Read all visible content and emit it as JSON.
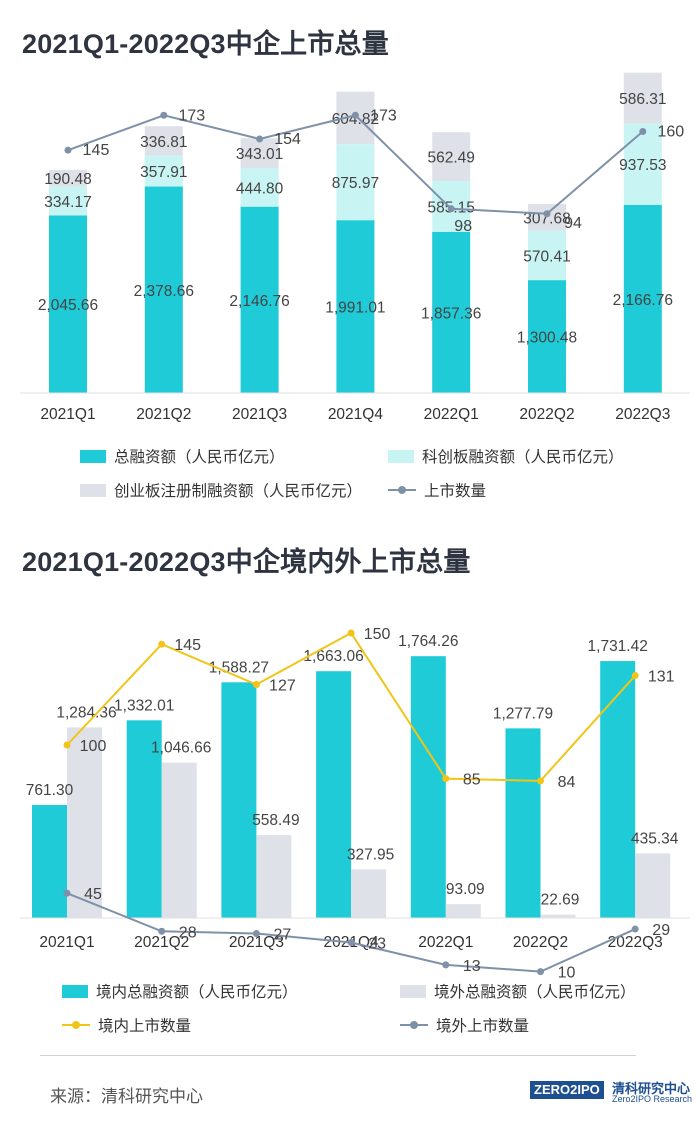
{
  "chart_data": [
    {
      "type": "bar",
      "title": "2021Q1-2022Q3中企上市总量",
      "categories": [
        "2021Q1",
        "2021Q2",
        "2021Q3",
        "2021Q4",
        "2022Q1",
        "2022Q2",
        "2022Q3"
      ],
      "series": [
        {
          "name": "总融资额（人民币亿元）",
          "kind": "bar",
          "color": "#1ecbd6",
          "values": [
            2045.66,
            2378.66,
            2146.76,
            1991.01,
            1857.36,
            1300.48,
            2166.76
          ],
          "labels": [
            "2,045.66",
            "2,378.66",
            "2,146.76",
            "1,991.01",
            "1,857.36",
            "1,300.48",
            "2,166.76"
          ]
        },
        {
          "name": "科创板融资额（人民币亿元）",
          "kind": "bar",
          "color": "#c9f4f4",
          "values": [
            334.17,
            357.91,
            444.8,
            875.97,
            585.15,
            570.41,
            937.53
          ],
          "labels": [
            "334.17",
            "357.91",
            "444.80",
            "875.97",
            "585.15",
            "570.41",
            "937.53"
          ]
        },
        {
          "name": "创业板注册制融资额（人民币亿元）",
          "kind": "bar",
          "color": "#dfe1e8",
          "values": [
            190.48,
            336.81,
            343.01,
            604.82,
            562.49,
            307.68,
            586.31
          ],
          "labels": [
            "190.48",
            "336.81",
            "343.01",
            "604.82",
            "562.49",
            "307.68",
            "586.31"
          ]
        },
        {
          "name": "上市数量",
          "kind": "line",
          "color": "#7f91a8",
          "values": [
            145,
            173,
            154,
            173,
            98,
            94,
            160
          ],
          "labels": [
            "145",
            "173",
            "154",
            "173",
            "98",
            "94",
            "160"
          ]
        }
      ]
    },
    {
      "type": "bar",
      "title": "2021Q1-2022Q3中企境内外上市总量",
      "categories": [
        "2021Q1",
        "2021Q2",
        "2021Q3",
        "2021Q4",
        "2022Q1",
        "2022Q2",
        "2022Q3"
      ],
      "series": [
        {
          "name": "境内总融资额（人民币亿元）",
          "kind": "bar",
          "color": "#1ecbd6",
          "values": [
            761.3,
            1332.01,
            1588.27,
            1663.06,
            1764.26,
            1277.79,
            1731.42
          ],
          "labels": [
            "761.30",
            "1,332.01",
            "1,588.27",
            "1,663.06",
            "1,764.26",
            "1,277.79",
            "1,731.42"
          ]
        },
        {
          "name": "境外总融资额（人民币亿元）",
          "kind": "bar",
          "color": "#dfe1e8",
          "values": [
            1284.36,
            1046.66,
            558.49,
            327.95,
            93.09,
            22.69,
            435.34
          ],
          "labels": [
            "1,284.36",
            "1,046.66",
            "558.49",
            "327.95",
            "93.09",
            "22.69",
            "435.34"
          ]
        },
        {
          "name": "境内上市数量",
          "kind": "line",
          "color": "#f2c418",
          "values": [
            100,
            145,
            127,
            150,
            85,
            84,
            131
          ],
          "labels": [
            "100",
            "145",
            "127",
            "150",
            "85",
            "84",
            "131"
          ]
        },
        {
          "name": "境外上市数量",
          "kind": "line",
          "color": "#7f91a8",
          "values": [
            45,
            28,
            27,
            23,
            13,
            10,
            29
          ],
          "labels": [
            "45",
            "28",
            "27",
            "23",
            "13",
            "10",
            "29"
          ]
        }
      ]
    }
  ],
  "source": "来源：清科研究中心",
  "brand": {
    "logo": "ZERO2IPO",
    "name_cn": "清科研究中心",
    "name_en": "Zero2IPO Research"
  }
}
